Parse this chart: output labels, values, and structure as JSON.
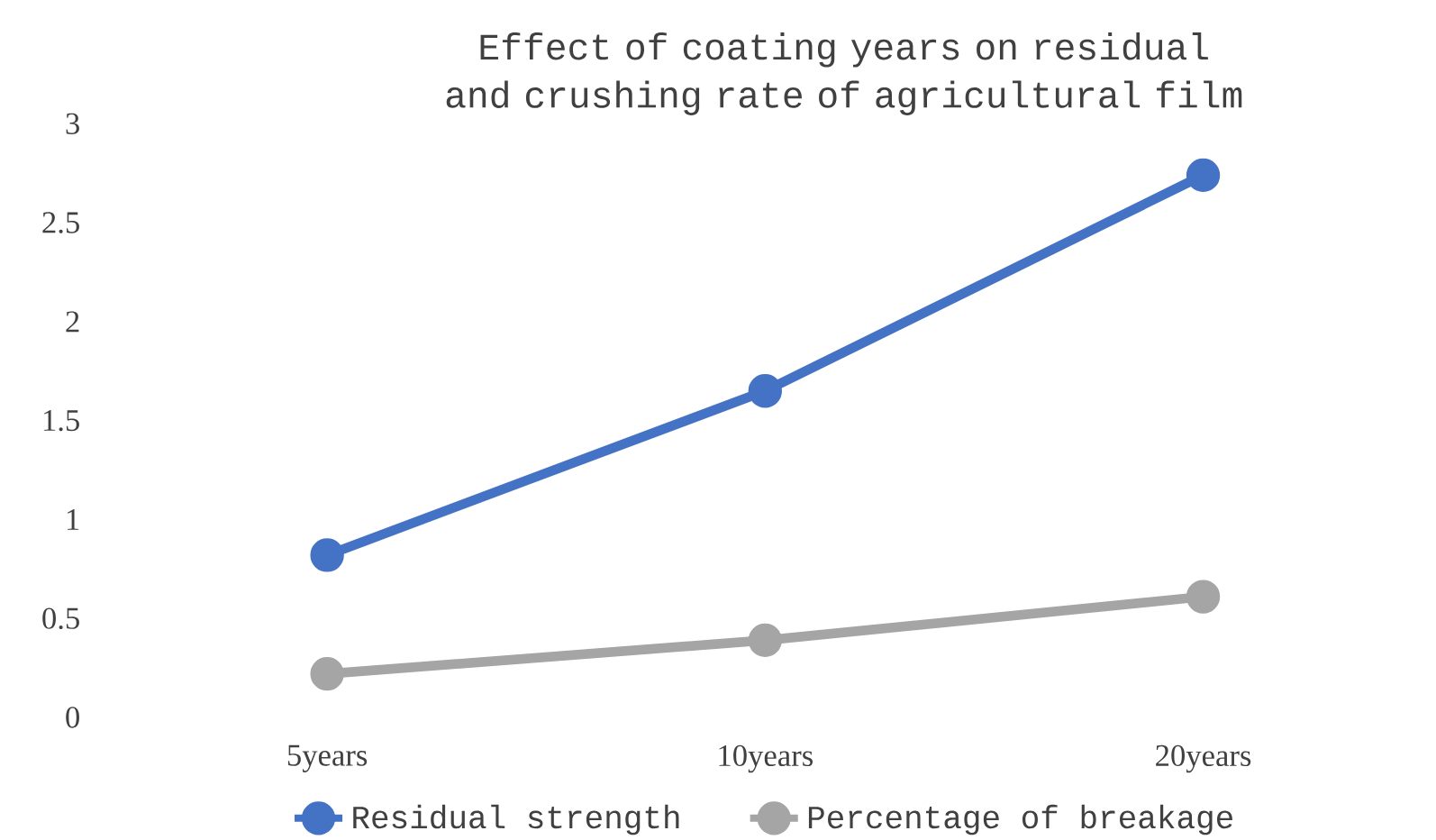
{
  "chart_data": {
    "type": "line",
    "title": "Effect of coating years on residual and crushing rate of agricultural film",
    "categories": [
      "5years",
      "10years",
      "20years"
    ],
    "series": [
      {
        "name": "Residual strength",
        "color": "#4472c4",
        "values": [
          0.82,
          1.65,
          2.74
        ]
      },
      {
        "name": "Percentage of breakage",
        "color": "#a5a5a5",
        "values": [
          0.22,
          0.39,
          0.61
        ]
      }
    ],
    "ylim": [
      0,
      3
    ],
    "yticks": [
      0,
      0.5,
      1,
      1.5,
      2,
      2.5,
      3
    ],
    "grid": false,
    "legend": "bottom",
    "marker": "circle",
    "line_style": "solid"
  }
}
